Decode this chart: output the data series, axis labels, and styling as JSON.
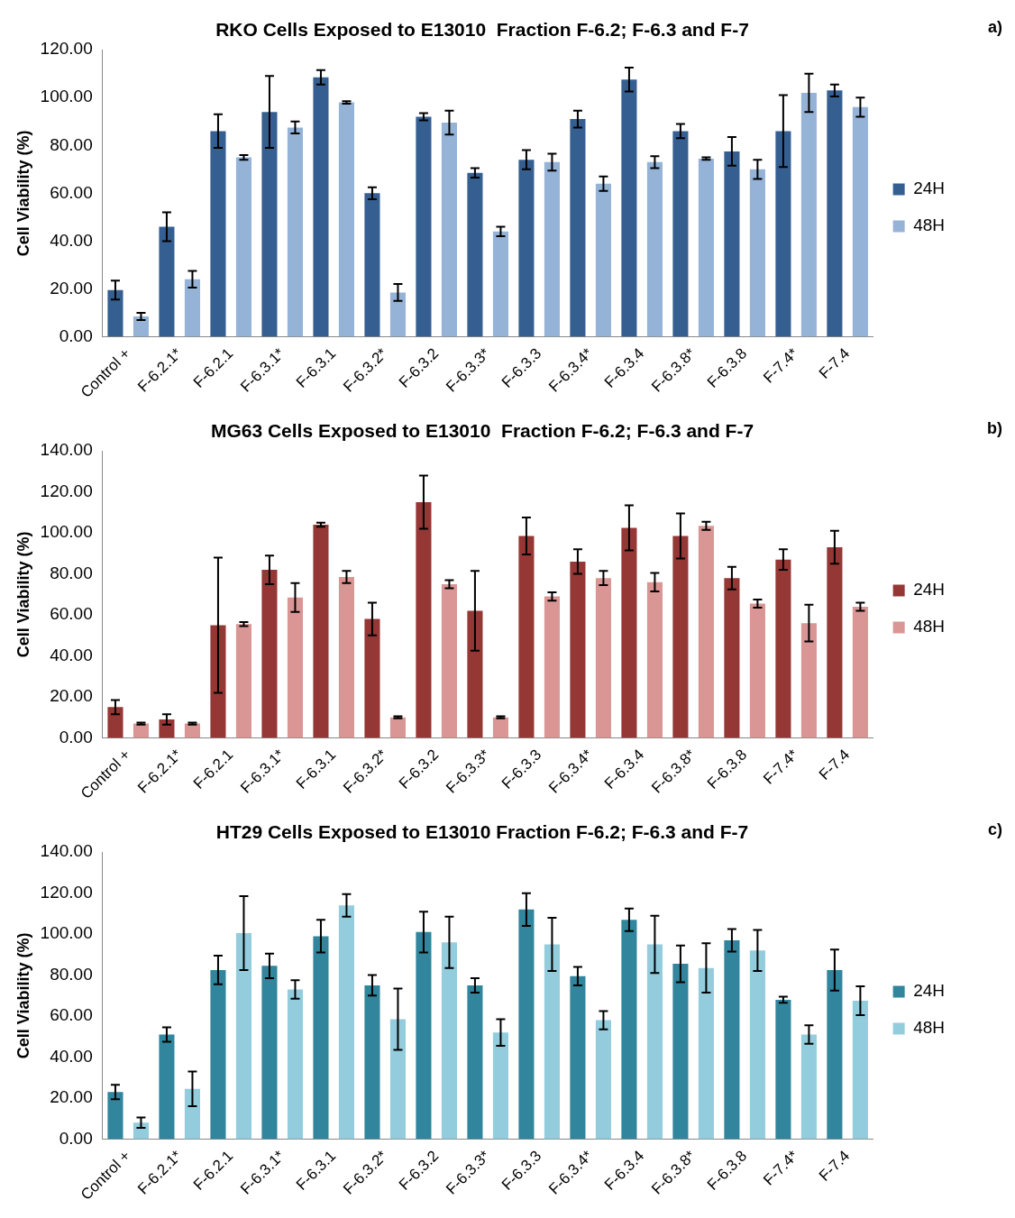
{
  "chart_data": [
    {
      "type": "bar",
      "title": "RKO Cells Exposed to E13010  Fraction F-6.2; F-6.3 and F-7",
      "ylabel": "Cell Viability (%)",
      "annotations": [
        "a)"
      ],
      "categories": [
        "Control +",
        "F-6.2.1*",
        "F-6.2.1",
        "F-6.3.1*",
        "F-6.3.1",
        "F-6.3.2*",
        "F-6.3.2",
        "F-6.3.3*",
        "F-6.3.3",
        "F-6.3.4*",
        "F-6.3.4",
        "F-6.3.8*",
        "F-6.3.8",
        "F-7.4*",
        "F-7.4"
      ],
      "series": [
        {
          "name": "24H",
          "color": "#365f91",
          "values": [
            19.5,
            46,
            86,
            94,
            108.5,
            60,
            92,
            68.5,
            74,
            91,
            107.5,
            86,
            77.5,
            86,
            103
          ],
          "errors": [
            4,
            6,
            7,
            15,
            3,
            2.5,
            1.5,
            2,
            4,
            3.5,
            5,
            3,
            6,
            15,
            2.5
          ]
        },
        {
          "name": "48H",
          "color": "#95b3d7",
          "values": [
            8.5,
            24,
            75,
            87.5,
            98,
            18.5,
            89.5,
            44,
            73,
            64,
            73,
            74.5,
            70,
            102,
            96
          ],
          "errors": [
            1.5,
            3.5,
            1,
            2.5,
            0.5,
            3.5,
            5,
            2,
            3.5,
            3,
            2.5,
            0.5,
            4,
            8,
            4
          ]
        }
      ],
      "ylim": [
        0,
        120
      ],
      "yticks": [
        {
          "value": 0,
          "label": "0.00"
        },
        {
          "value": 20,
          "label": "20.00"
        },
        {
          "value": 40,
          "label": "40.00"
        },
        {
          "value": 60,
          "label": "60.00"
        },
        {
          "value": 80,
          "label": "80.00"
        },
        {
          "value": 100,
          "label": "100.00"
        },
        {
          "value": 120,
          "label": "120.00"
        }
      ],
      "grid": false,
      "legend": "right"
    },
    {
      "type": "bar",
      "title": "MG63 Cells Exposed to E13010  Fraction F-6.2; F-6.3 and F-7",
      "ylabel": "Cell Viability (%)",
      "annotations": [
        "b)"
      ],
      "categories": [
        "Control +",
        "F-6.2.1*",
        "F-6.2.1",
        "F-6.3.1*",
        "F-6.3.1",
        "F-6.3.2*",
        "F-6.3.2",
        "F-6.3.3*",
        "F-6.3.3",
        "F-6.3.4*",
        "F-6.3.4",
        "F-6.3.8*",
        "F-6.3.8",
        "F-7.4*",
        "F-7.4"
      ],
      "series": [
        {
          "name": "24H",
          "color": "#953735",
          "values": [
            15,
            9,
            55,
            82,
            104,
            58,
            115,
            62,
            98.5,
            86,
            102.5,
            98.5,
            78,
            87,
            93
          ],
          "errors": [
            3.5,
            2.5,
            33,
            7,
            1,
            8,
            13,
            19.5,
            9,
            6,
            11,
            11,
            5.5,
            5,
            8
          ]
        },
        {
          "name": "48H",
          "color": "#d99694",
          "values": [
            7,
            7,
            55.5,
            68.5,
            78.5,
            10,
            75,
            10,
            69,
            78,
            76,
            103.5,
            65.5,
            56,
            64
          ],
          "errors": [
            0.5,
            0.5,
            1,
            7,
            3,
            0.5,
            2,
            0.5,
            2,
            3.5,
            4.5,
            2,
            2,
            9,
            2
          ]
        }
      ],
      "ylim": [
        0,
        140
      ],
      "yticks": [
        {
          "value": 0,
          "label": "0.00"
        },
        {
          "value": 20,
          "label": "20.00"
        },
        {
          "value": 40,
          "label": "40.00"
        },
        {
          "value": 60,
          "label": "60.00"
        },
        {
          "value": 80,
          "label": "80.00"
        },
        {
          "value": 100,
          "label": "100.00"
        },
        {
          "value": 120,
          "label": "120.00"
        },
        {
          "value": 140,
          "label": "140.00"
        }
      ],
      "grid": false,
      "legend": "right"
    },
    {
      "type": "bar",
      "title": "HT29 Cells Exposed to E13010 Fraction F-6.2; F-6.3 and F-7",
      "ylabel": "Cell Viability (%)",
      "annotations": [
        "c)"
      ],
      "categories": [
        "Control +",
        "F-6.2.1*",
        "F-6.2.1",
        "F-6.3.1*",
        "F-6.3.1",
        "F-6.3.2*",
        "F-6.3.2",
        "F-6.3.3*",
        "F-6.3.3",
        "F-6.3.4*",
        "F-6.3.4",
        "F-6.3.8*",
        "F-6.3.8",
        "F-7.4*",
        "F-7.4"
      ],
      "series": [
        {
          "name": "24H",
          "color": "#31859c",
          "values": [
            23,
            51,
            82.5,
            84.5,
            99,
            75,
            101,
            75,
            112,
            79.5,
            107,
            85.5,
            97,
            68,
            82.5
          ],
          "errors": [
            3.5,
            3.5,
            7,
            6,
            8,
            5,
            10,
            3.5,
            8,
            4.5,
            5.5,
            9,
            5.5,
            1.5,
            10
          ]
        },
        {
          "name": "48H",
          "color": "#93cddd",
          "values": [
            8,
            24.5,
            100.5,
            73,
            114,
            58.5,
            96,
            52,
            95,
            58,
            95,
            83.5,
            92,
            51,
            67.5
          ],
          "errors": [
            2.5,
            8.5,
            18,
            4.5,
            5.5,
            15,
            12.5,
            6.5,
            13,
            4.5,
            14,
            12,
            10,
            4.5,
            7
          ]
        }
      ],
      "ylim": [
        0,
        140
      ],
      "yticks": [
        {
          "value": 0,
          "label": "0.00"
        },
        {
          "value": 20,
          "label": "20.00"
        },
        {
          "value": 40,
          "label": "40.00"
        },
        {
          "value": 60,
          "label": "60.00"
        },
        {
          "value": 80,
          "label": "80.00"
        },
        {
          "value": 100,
          "label": "100.00"
        },
        {
          "value": 120,
          "label": "120.00"
        },
        {
          "value": 140,
          "label": "140.00"
        }
      ],
      "grid": false,
      "legend": "right"
    }
  ]
}
